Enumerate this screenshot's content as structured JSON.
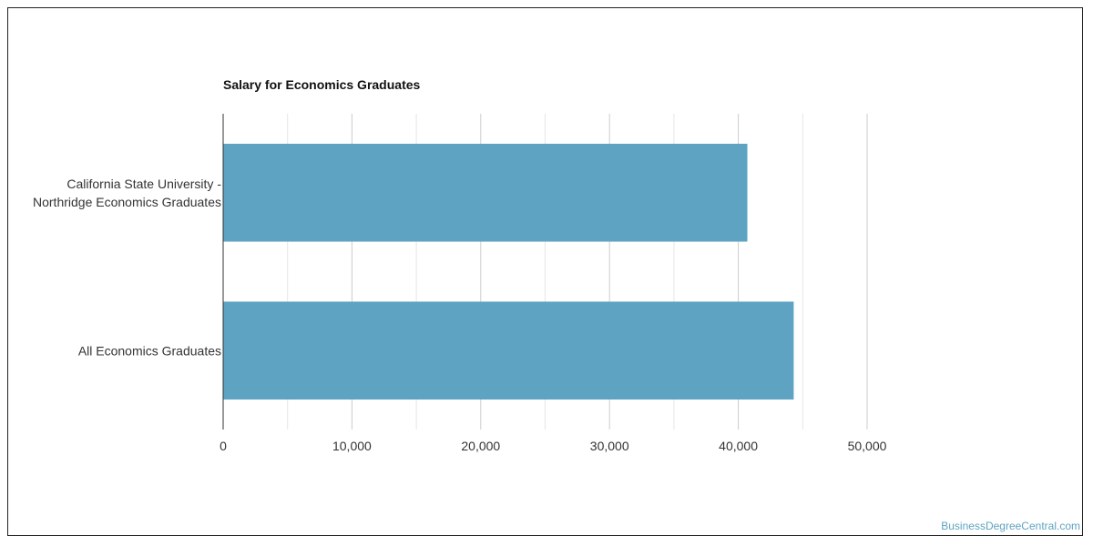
{
  "chart_data": {
    "type": "bar",
    "orientation": "horizontal",
    "title": "Salary for Economics Graduates",
    "categories": [
      [
        "California State University -",
        "Northridge Economics Graduates"
      ],
      [
        "All Economics Graduates"
      ]
    ],
    "values": [
      40700,
      44300
    ],
    "xlim": [
      0,
      50000
    ],
    "ticks": [
      0,
      10000,
      20000,
      30000,
      40000,
      50000
    ],
    "tick_labels": [
      "0",
      "10,000",
      "20,000",
      "30,000",
      "40,000",
      "50,000"
    ],
    "xlabel": "",
    "ylabel": "",
    "grid": true,
    "bar_color": "#5ea3c1"
  },
  "watermark": "BusinessDegreeCentral.com"
}
